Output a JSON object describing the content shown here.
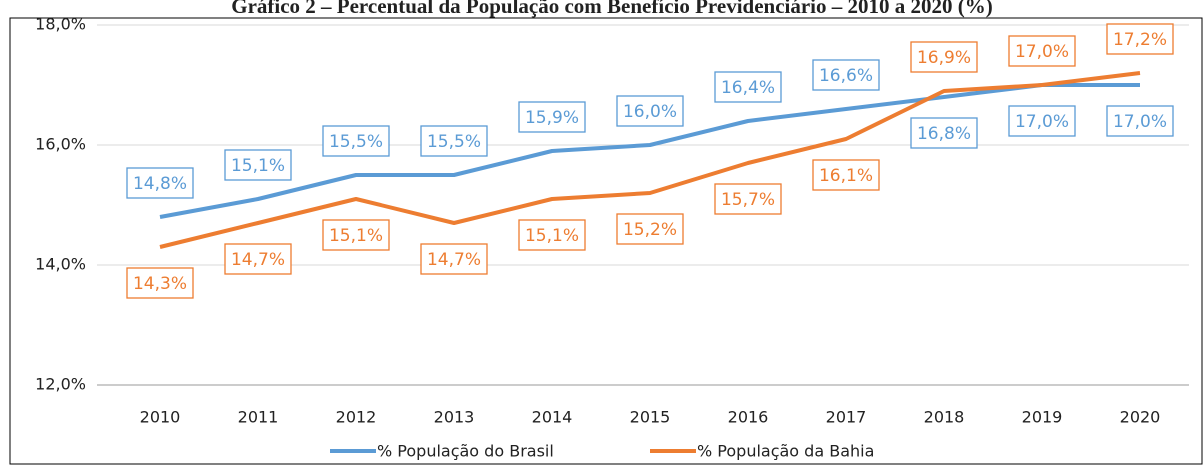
{
  "chart_data": {
    "type": "line",
    "title": "Gráfico 2 – Percentual da População com Benefício Previdenciário – 2010 a 2020 (%)",
    "categories": [
      "2010",
      "2011",
      "2012",
      "2013",
      "2014",
      "2015",
      "2016",
      "2017",
      "2018",
      "2019",
      "2020"
    ],
    "series": [
      {
        "name": "% População do Brasil",
        "color": "#5b9bd5",
        "values": [
          14.8,
          15.1,
          15.5,
          15.5,
          15.9,
          16.0,
          16.4,
          16.6,
          16.8,
          17.0,
          17.0
        ],
        "value_labels": [
          "14,8%",
          "15,1%",
          "15,5%",
          "15,5%",
          "15,9%",
          "16,0%",
          "16,4%",
          "16,6%",
          "16,8%",
          "17,0%",
          "17,0%"
        ]
      },
      {
        "name": "% População da Bahia",
        "color": "#ed7d31",
        "values": [
          14.3,
          14.7,
          15.1,
          14.7,
          15.1,
          15.2,
          15.7,
          16.1,
          16.9,
          17.0,
          17.2
        ],
        "value_labels": [
          "14,3%",
          "14,7%",
          "15,1%",
          "14,7%",
          "15,1%",
          "15,2%",
          "15,7%",
          "16,1%",
          "16,9%",
          "17,0%",
          "17,2%"
        ]
      }
    ],
    "ylim": [
      12,
      18
    ],
    "yticks": [
      {
        "value": 12,
        "label": "12,0%"
      },
      {
        "value": 14,
        "label": "14,0%"
      },
      {
        "value": 16,
        "label": "16,0%"
      },
      {
        "value": 18,
        "label": "18,0%"
      }
    ],
    "grid": true,
    "legend": "bottom"
  }
}
